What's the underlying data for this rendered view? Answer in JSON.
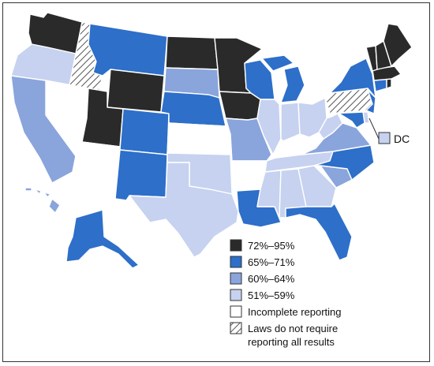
{
  "colors": {
    "c1": "#2a2a2a",
    "c2": "#2d6fc9",
    "c3": "#8aa4dc",
    "c4": "#c6d2ef",
    "c5": "#ffffff",
    "hatch": "#555555"
  },
  "legend": [
    {
      "key": "c1",
      "label": "72%–95%"
    },
    {
      "key": "c2",
      "label": "65%–71%"
    },
    {
      "key": "c3",
      "label": "60%–64%"
    },
    {
      "key": "c4",
      "label": "51%–59%"
    },
    {
      "key": "c5",
      "label": "Incomplete reporting"
    },
    {
      "key": "hatch",
      "label": "Laws do not require",
      "label2": "reporting all results"
    }
  ],
  "dc": {
    "label": "DC",
    "category": "c4"
  },
  "states": {
    "WA": "c1",
    "OR": "c4",
    "ID": "hatch",
    "MT": "c2",
    "WY": "c1",
    "CA": "c3",
    "NV": "c5",
    "UT": "c1",
    "AZ": "c5",
    "CO": "c2",
    "NM": "c2",
    "ND": "c1",
    "SD": "c3",
    "NE": "c2",
    "KS": "c5",
    "OK": "c4",
    "TX": "c4",
    "MN": "c1",
    "IA": "c1",
    "MO": "c3",
    "AR": "c5",
    "LA": "c2",
    "WI": "c2",
    "IL": "c4",
    "MI": "c2",
    "IN": "c4",
    "OH": "c4",
    "KY": "c5",
    "TN": "c4",
    "MS": "c4",
    "AL": "c4",
    "GA": "c4",
    "FL": "c2",
    "SC": "c3",
    "NC": "c2",
    "VA": "c3",
    "WV": "c4",
    "PA": "hatch",
    "NY": "c2",
    "VT": "c1",
    "NH": "c1",
    "ME": "c1",
    "MA": "c1",
    "RI": "c1",
    "CT": "c2",
    "NJ": "c2",
    "DE": "c4",
    "MD": "c2",
    "AK": "c2",
    "HI": "c3"
  }
}
